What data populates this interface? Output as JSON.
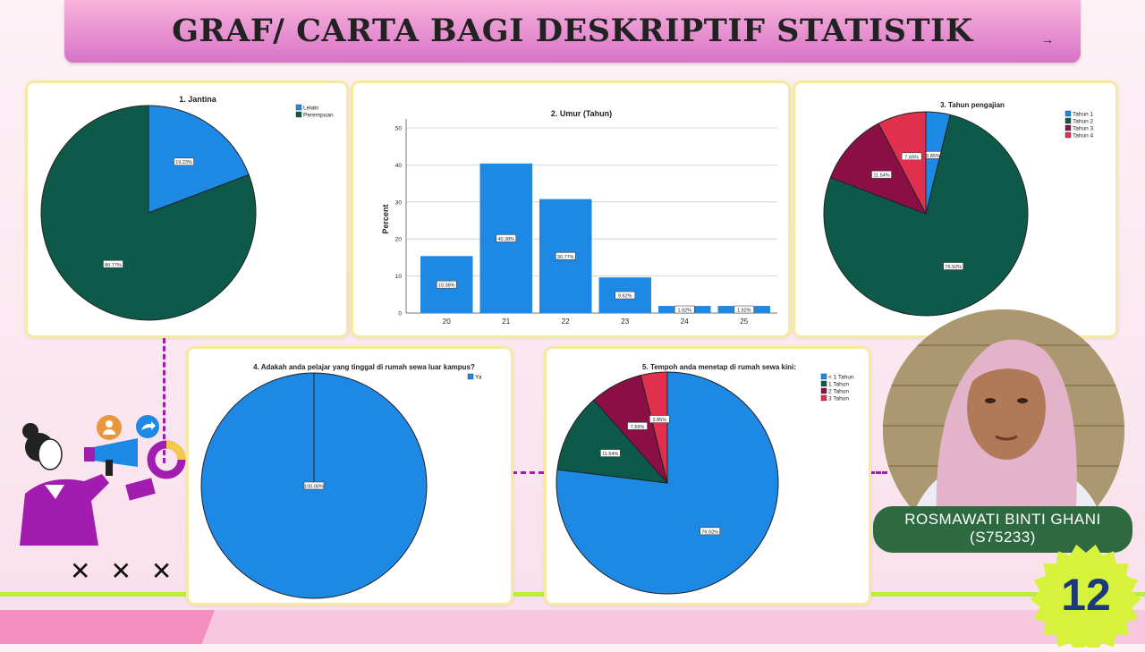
{
  "header": {
    "title": "GRAF/ CARTA BAGI DESKRIPTIF STATISTIK",
    "arrow": "→"
  },
  "colors": {
    "blue": "#1e88e5",
    "dark_green": "#0e5a4a",
    "maroon": "#8b0f45",
    "red": "#e0304e"
  },
  "presenter": {
    "name": "ROSMAWATI BINTI GHANI",
    "id": "(S75233)"
  },
  "slide_number": "12",
  "decor": {
    "xmarks": "✕✕✕"
  },
  "chart_data": [
    {
      "type": "pie",
      "title": "1. Jantina",
      "categories": [
        "Lelaki",
        "Perempuan"
      ],
      "values": [
        19.23,
        80.77
      ],
      "labels": [
        "19.23%",
        "80.77%"
      ],
      "colors": [
        "#1e88e5",
        "#0e5a4a"
      ],
      "legend": "top-right"
    },
    {
      "type": "bar",
      "title": "2. Umur (Tahun)",
      "ylabel": "Percent",
      "xlabel": "",
      "categories": [
        "20",
        "21",
        "22",
        "23",
        "24",
        "25"
      ],
      "values": [
        15.38,
        40.38,
        30.77,
        9.62,
        1.92,
        1.92
      ],
      "labels": [
        "15.38%",
        "40.38%",
        "30.77%",
        "9.62%",
        "1.92%",
        "1.92%"
      ],
      "ylim": [
        0,
        50
      ],
      "yticks": [
        "0",
        "10",
        "20",
        "30",
        "40",
        "50"
      ],
      "grid": true,
      "color": "#1e88e5"
    },
    {
      "type": "pie",
      "title": "3. Tahun pengajian",
      "categories": [
        "Tahun 1",
        "Tahun 2",
        "Tahun 3",
        "Tahun 4"
      ],
      "values": [
        3.85,
        76.92,
        11.54,
        7.69
      ],
      "labels": [
        "3.85%",
        "76.92%",
        "11.54%",
        "7.69%"
      ],
      "colors": [
        "#1e88e5",
        "#0e5a4a",
        "#8b0f45",
        "#e0304e"
      ],
      "legend": "top-right"
    },
    {
      "type": "pie",
      "title": "4. Adakah anda pelajar yang tinggal di rumah sewa luar kampus?",
      "categories": [
        "Ya"
      ],
      "values": [
        100
      ],
      "labels": [
        "100.00%"
      ],
      "colors": [
        "#1e88e5"
      ],
      "legend": "top-right"
    },
    {
      "type": "pie",
      "title": "5. Tempoh anda menetap di rumah sewa kini:",
      "categories": [
        "< 1 Tahun",
        "1 Tahun",
        "2 Tahun",
        "3 Tahun"
      ],
      "values": [
        76.92,
        11.54,
        7.69,
        3.85
      ],
      "labels": [
        "76.92%",
        "11.54%",
        "7.69%",
        "3.85%"
      ],
      "colors": [
        "#1e88e5",
        "#0e5a4a",
        "#8b0f45",
        "#e0304e"
      ],
      "legend": "top-right"
    }
  ]
}
